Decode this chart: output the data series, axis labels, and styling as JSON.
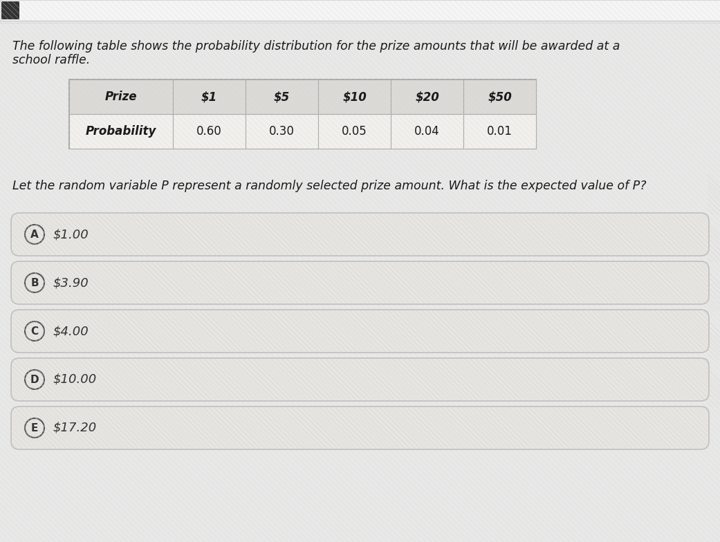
{
  "bg_color": "#e8e8e8",
  "content_bg": "#f0efed",
  "header_text_line1": "The following table shows the probability distribution for the prize amounts that will be awarded at a",
  "header_text_line2": "school raffle.",
  "header_fontsize": 12.5,
  "table_headers": [
    "Prize",
    "$1",
    "$5",
    "$10",
    "$20",
    "$50"
  ],
  "table_row_label": "Probability",
  "table_row_values": [
    "0.60",
    "0.30",
    "0.05",
    "0.04",
    "0.01"
  ],
  "question_text": "Let the random variable P represent a randomly selected prize amount. What is the expected value of P?",
  "question_fontsize": 12.5,
  "choices": [
    {
      "letter": "A",
      "text": "$1.00"
    },
    {
      "letter": "B",
      "text": "$3.90"
    },
    {
      "letter": "C",
      "text": "$4.00"
    },
    {
      "letter": "D",
      "text": "$10.00"
    },
    {
      "letter": "E",
      "text": "$17.20"
    }
  ],
  "choice_bg": "#e8e6e2",
  "choice_border": "#c0bebb",
  "choice_fontsize": 13,
  "letter_circle_color": "#e8e6e2",
  "letter_circle_border": "#555555",
  "table_header_bg": "#dcdad7",
  "table_cell_bg": "#f2f0ed",
  "table_border_color": "#aaaaaa",
  "top_bar_color": "#ffffff",
  "top_bar_height": 0.038
}
